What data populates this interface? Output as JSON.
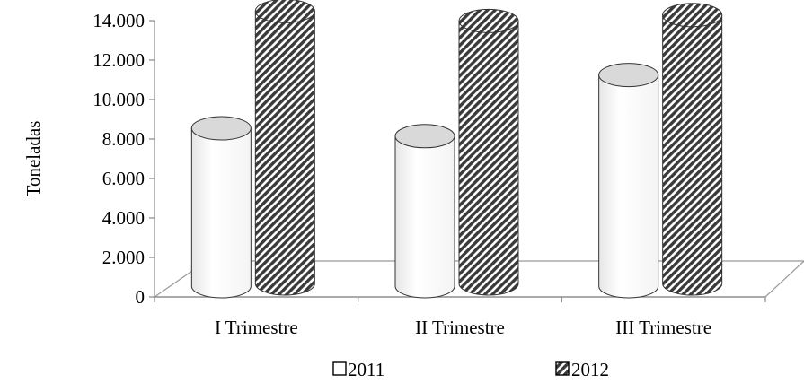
{
  "chart_data": {
    "type": "bar",
    "style": "3d-cylinder",
    "title": "",
    "xlabel": "",
    "ylabel": "Toneladas",
    "ylim": [
      0,
      14000
    ],
    "yticks": [
      0,
      2000,
      4000,
      6000,
      8000,
      10000,
      12000,
      14000
    ],
    "ytick_labels": [
      "0",
      "2.000",
      "4.000",
      "6.000",
      "8.000",
      "10.000",
      "12.000",
      "14.000"
    ],
    "categories": [
      "I Trimestre",
      "II Trimestre",
      "III Trimestre"
    ],
    "series": [
      {
        "name": "2011",
        "values": [
          8000,
          7600,
          10700
        ],
        "fill": "#ffffff",
        "pattern": "none"
      },
      {
        "name": "2012",
        "values": [
          13800,
          13300,
          13600
        ],
        "fill": "#555555",
        "pattern": "diagonal-hatch"
      }
    ],
    "legend_position": "bottom",
    "grid": false
  }
}
